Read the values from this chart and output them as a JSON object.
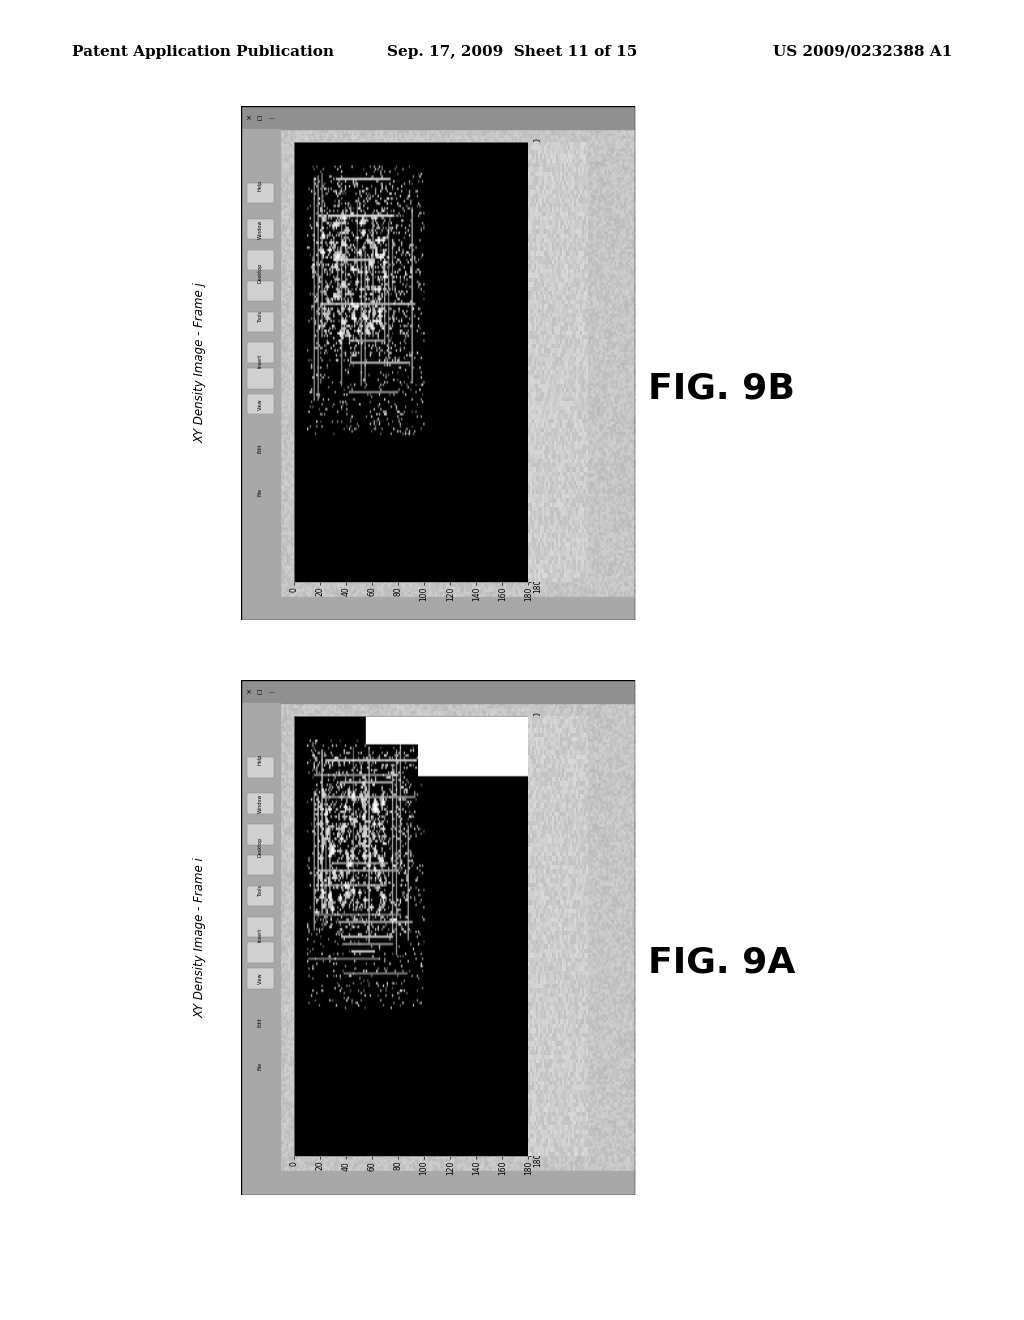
{
  "background_color": "#ffffff",
  "header_left": "Patent Application Publication",
  "header_center": "Sep. 17, 2009  Sheet 11 of 15",
  "header_right": "US 2009/0232388 A1",
  "header_fontsize": 11,
  "fig9b": {
    "label": "XY Density Image - Frame j",
    "fig_label": "FIG. 9B",
    "white_region_top": false
  },
  "fig9a": {
    "label": "XY Density Image - Frame i",
    "fig_label": "FIG. 9A",
    "white_region_top": true
  },
  "axis_ticks": [
    0,
    20,
    40,
    60,
    80,
    100,
    120,
    140,
    160,
    180
  ],
  "window_outer_color": "#c8c8c8",
  "window_toolbar_color": "#b0b0b0",
  "fig_label_fontsize": 26
}
